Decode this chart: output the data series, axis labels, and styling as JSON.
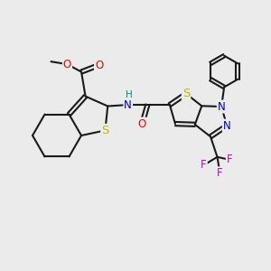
{
  "bg_color": "#ebebeb",
  "bond_color": "#1a1a1a",
  "bond_width": 1.5,
  "dbo": 0.07,
  "atom_colors": {
    "O": "#ff0000",
    "N": "#0000cc",
    "S": "#bbbb00",
    "F": "#cc00cc",
    "H": "#008888",
    "C": "#1a1a1a"
  },
  "fs": 8.5
}
